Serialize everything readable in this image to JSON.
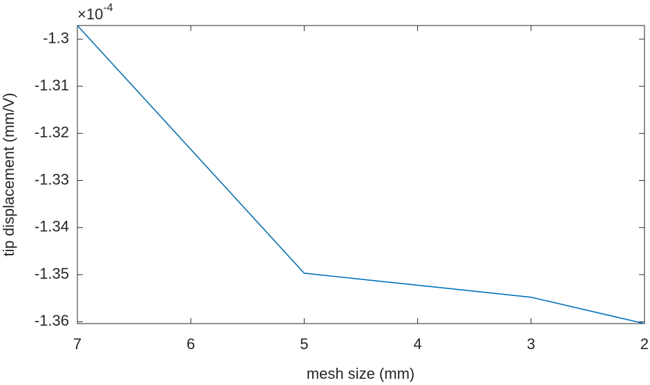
{
  "chart_data": {
    "type": "line",
    "x_label": "mesh size (mm)",
    "y_label": "tip displacement (mm/V)",
    "y_multiplier": {
      "base": "×10",
      "exponent": "-4"
    },
    "x": [
      7,
      5,
      3,
      2
    ],
    "series": [
      {
        "color": "#0072BD",
        "values": [
          -1.2971,
          -1.3497,
          -1.3548,
          -1.3604
        ]
      }
    ],
    "xlim": [
      7,
      2
    ],
    "xticks": [
      7,
      6,
      5,
      4,
      3,
      2
    ],
    "ylim": [
      -1.3604,
      -1.2971
    ],
    "yticks": [
      -1.3,
      -1.31,
      -1.32,
      -1.33,
      -1.34,
      -1.35,
      -1.36
    ],
    "grid": false
  }
}
